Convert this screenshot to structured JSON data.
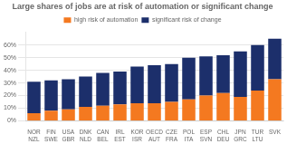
{
  "chart_data": {
    "type": "bar",
    "title": "Large shares of jobs are at risk of automation or significant change",
    "categories": [
      "NOR\nNZL",
      "FIN\nSWE",
      "USA\nGBR",
      "DNK\nNLD",
      "CAN\nBEL",
      "IRL\nEST",
      "KOR\nISR",
      "OECD\nAUT",
      "CZE\nFRA",
      "POL\nITA",
      "ESP\nSVN",
      "CHL\nDEU",
      "JPN\nGRC",
      "TUR\nLTU",
      "SVK"
    ],
    "series": [
      {
        "name": "high risk of automation",
        "color": "#f47920",
        "values": [
          6,
          8,
          9,
          11,
          12,
          13,
          14,
          14,
          15,
          17,
          20,
          22,
          19,
          24,
          33
        ]
      },
      {
        "name": "significant risk of change",
        "color": "#1c2f6b",
        "values": [
          25,
          24,
          24,
          24,
          26,
          26,
          29,
          30,
          30,
          33,
          31,
          30,
          36,
          36,
          32
        ]
      }
    ],
    "stacked": true,
    "ylim": [
      0,
      70
    ],
    "yticks": [
      {
        "value": 0,
        "label": "0%"
      },
      {
        "value": 10,
        "label": "10%"
      },
      {
        "value": 20,
        "label": "20%"
      },
      {
        "value": 30,
        "label": "30%"
      },
      {
        "value": 40,
        "label": "40%"
      },
      {
        "value": 50,
        "label": "50%"
      },
      {
        "value": 60,
        "label": "60%"
      }
    ],
    "grid": true,
    "legend": "top"
  }
}
